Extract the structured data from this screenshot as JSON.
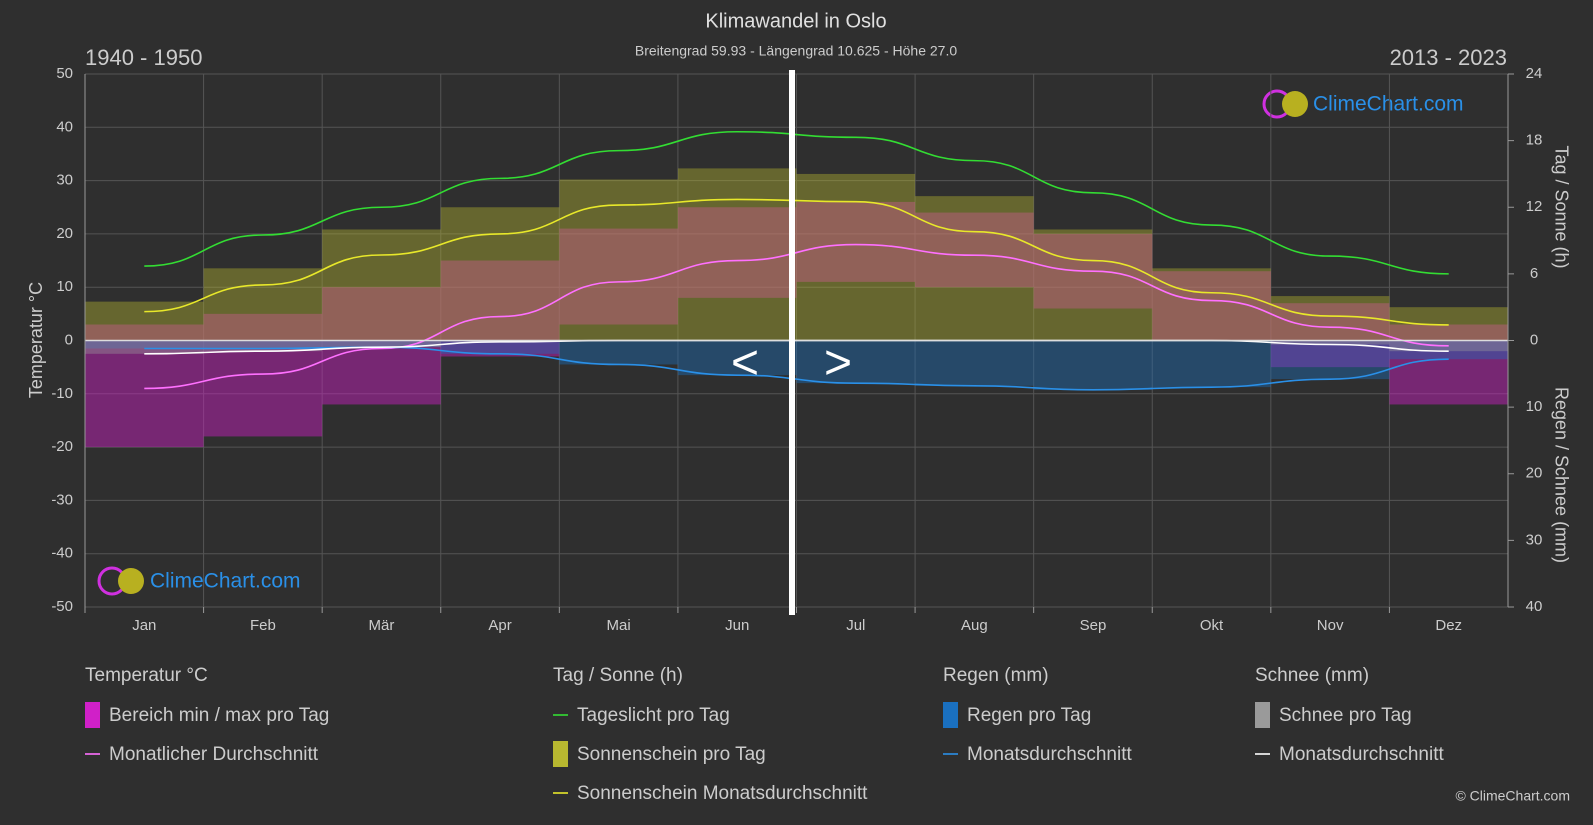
{
  "chart_data": {
    "type": "climate",
    "title": "Klimawandel in Oslo",
    "subtitle": "Breitengrad 59.93 - Längengrad 10.625 - Höhe 27.0",
    "period_left": "1940 - 1950",
    "period_right": "2013 - 2023",
    "y_label": "Temperatur °C",
    "y2_label": "Tag / Sonne (h)",
    "y3_label": "Regen / Schnee (mm)",
    "brand": "ClimeChart.com",
    "copyright": "© ClimeChart.com",
    "nav_prev": "<",
    "nav_next": ">",
    "categories": [
      "Jan",
      "Feb",
      "Mär",
      "Apr",
      "Mai",
      "Jun",
      "Jul",
      "Aug",
      "Sep",
      "Okt",
      "Nov",
      "Dez"
    ],
    "ylim": [
      -50,
      50
    ],
    "yticks": [
      -50,
      -40,
      -30,
      -20,
      -10,
      0,
      10,
      20,
      30,
      40,
      50
    ],
    "y2lim": [
      -24,
      24
    ],
    "y2ticks": [
      0,
      6,
      12,
      18,
      24
    ],
    "y3lim": [
      40,
      -40
    ],
    "y3ticks": [
      10,
      20,
      30,
      40
    ],
    "grid": true,
    "legend_groups": [
      "Temperatur °C",
      "Tag / Sonne (h)",
      "Regen (mm)",
      "Schnee (mm)"
    ],
    "series": [
      {
        "name": "Bereich min / max pro Tag",
        "group": 0,
        "kind": "range",
        "axis": "y",
        "color": "#d020c8",
        "min": [
          -20,
          -18,
          -12,
          -3,
          3,
          8,
          11,
          10,
          6,
          0,
          -5,
          -12
        ],
        "max": [
          3,
          5,
          10,
          15,
          21,
          25,
          26,
          24,
          20,
          13,
          7,
          3
        ]
      },
      {
        "name": "Monatlicher Durchschnitt",
        "group": 0,
        "kind": "line",
        "axis": "y",
        "color": "#ff70ff",
        "values": [
          -9,
          -6.3,
          -1.5,
          4.5,
          11,
          15,
          18,
          16,
          13,
          7.5,
          2.5,
          -1
        ]
      },
      {
        "name": "Tageslicht pro Tag",
        "group": 1,
        "kind": "line",
        "axis": "y2",
        "color": "#33dd33",
        "values": [
          6.7,
          9.5,
          12,
          14.6,
          17.1,
          18.8,
          18.3,
          16.2,
          13.3,
          10.4,
          7.6,
          6
        ]
      },
      {
        "name": "Sonnenschein pro Tag",
        "group": 1,
        "kind": "bars",
        "axis": "y2",
        "color": "#b8b830",
        "values": [
          3.5,
          6.5,
          10,
          12,
          14.5,
          15.5,
          15,
          13,
          10,
          6.5,
          4,
          3
        ]
      },
      {
        "name": "Sonnenschein Monatsdurchschnitt",
        "group": 1,
        "kind": "line",
        "axis": "y2",
        "color": "#e8e82a",
        "values": [
          2.6,
          5,
          7.7,
          9.6,
          12.2,
          12.7,
          12.5,
          9.8,
          7.2,
          4.3,
          2.2,
          1.4
        ]
      },
      {
        "name": "Regen pro Tag",
        "group": 2,
        "kind": "bars",
        "axis": "y3",
        "color": "#1a70c0",
        "values": [
          1.2,
          1.2,
          1,
          2,
          3.6,
          5.2,
          6.4,
          6.8,
          7.4,
          7,
          5.8,
          2.8
        ]
      },
      {
        "name": "Monatsdurchschnitt",
        "group": 2,
        "kind": "line",
        "axis": "y3",
        "color": "#2a90e8",
        "values": [
          1.2,
          1.2,
          1,
          2,
          3.6,
          5.2,
          6.4,
          6.8,
          7.4,
          7,
          5.8,
          2.8
        ]
      },
      {
        "name": "Schnee pro Tag",
        "group": 3,
        "kind": "bars",
        "axis": "y3",
        "color": "#9a9a9a",
        "values": [
          2,
          1.6,
          1,
          0.2,
          0,
          0,
          0,
          0,
          0,
          0,
          0.6,
          1.6
        ]
      },
      {
        "name": "Monatsdurchschnitt",
        "group": 3,
        "kind": "line",
        "axis": "y3",
        "color": "#ffffff",
        "values": [
          2,
          1.6,
          1,
          0.2,
          0,
          0,
          0,
          0,
          0,
          0,
          0.6,
          1.6
        ]
      }
    ]
  }
}
